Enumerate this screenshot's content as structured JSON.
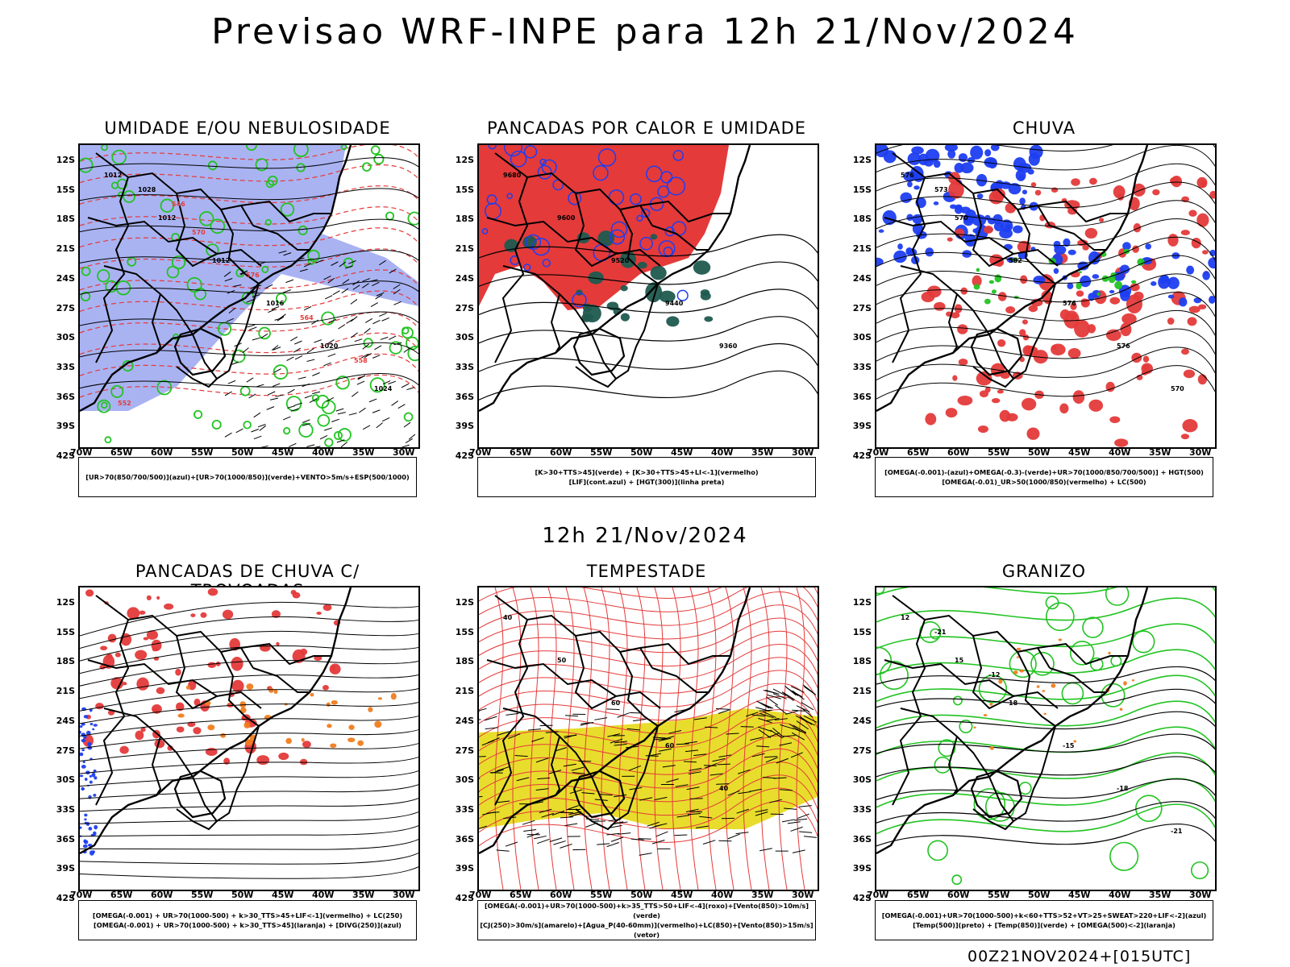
{
  "header": {
    "title": "Previsao WRF-INPE  para 12h 21/Nov/2024"
  },
  "mid_date": "12h 21/Nov/2024",
  "footer": "00Z21NOV2024+[015UTC]",
  "axes": {
    "lat_labels": [
      "12S",
      "15S",
      "18S",
      "21S",
      "24S",
      "27S",
      "30S",
      "33S",
      "36S",
      "39S",
      "42S"
    ],
    "lon_labels": [
      "70W",
      "65W",
      "60W",
      "55W",
      "50W",
      "45W",
      "40W",
      "35W",
      "30W"
    ]
  },
  "panels": [
    {
      "title": "UMIDADE E/OU NEBULOSIDADE",
      "legend": [
        "[UR>70(850/700/500)](azul)+[UR>70(1000/850)](verde)+VENTO>5m/s+ESP(500/1000)"
      ],
      "contour_labels": [
        "1012",
        "1012",
        "1012",
        "1016",
        "1020",
        "1024",
        "1028",
        "570",
        "576",
        "564",
        "558",
        "552",
        "546"
      ]
    },
    {
      "title": "PANCADAS POR CALOR E UMIDADE",
      "legend": [
        "[K>30+TTS>45](verde) + [K>30+TTS>45+LI<-1](vermelho)",
        "[LIF](cont.azul) + [HGT(300)](linha preta)"
      ],
      "contour_labels": [
        "9680",
        "9600",
        "9520",
        "9440",
        "9360"
      ]
    },
    {
      "title": "CHUVA",
      "legend": [
        "[OMEGA(-0.001)-(azul)+OMEGA(-0.3)-(verde)+UR>70(1000/850/700/500)] + HGT(500)",
        "[OMEGA(-0.01)_UR>50(1000/850)(vermelho) + LC(500)"
      ],
      "contour_labels": [
        "576",
        "570",
        "582",
        "576",
        "576",
        "570",
        "573"
      ]
    },
    {
      "title": "PANCADAS DE CHUVA C/ TROVOADAS",
      "legend": [
        "[OMEGA(-0.001) + UR>70(1000-500) + k>30_TTS>45+LIF<-1](vermelho) + LC(250)",
        "[OMEGA(-0.001) + UR>70(1000-500) + k>30_TTS>45](laranja) + [DIVG(250)](azul)"
      ],
      "contour_labels": []
    },
    {
      "title": "TEMPESTADE",
      "legend": [
        "[OMEGA(-0.001)+UR>70(1000-500)+k>35_TTS>50+LIF<-4](roxo)+[Vento(850)>10m/s](verde)",
        "[CJ(250)>30m/s](amarelo)+[Agua_P(40-60mm)](vermelho)+LC(850)+[Vento(850)>15m/s](vetor)"
      ],
      "contour_labels": [
        "40",
        "50",
        "60",
        "60",
        "40"
      ]
    },
    {
      "title": "GRANIZO",
      "legend": [
        "[OMEGA(-0.001)+UR>70(1000-500)+k<60+TTS>52+VT>25+SWEAT>220+LIF<-2](azul)",
        "[Temp(500)](preto) + [Temp(850)](verde) + [OMEGA(500)<-2](laranja)"
      ],
      "contour_labels": [
        "12",
        "15",
        "18",
        "-15",
        "-18",
        "-21",
        "-21",
        "-12"
      ]
    }
  ],
  "colors": {
    "blue_fill": "#9aa6f0",
    "red": "#e43a3a",
    "green": "#22c322",
    "yellow": "#e8dd2c",
    "darkgreen": "#1f5a4f",
    "blue": "#1e3ef0",
    "orange": "#f07d1e"
  }
}
